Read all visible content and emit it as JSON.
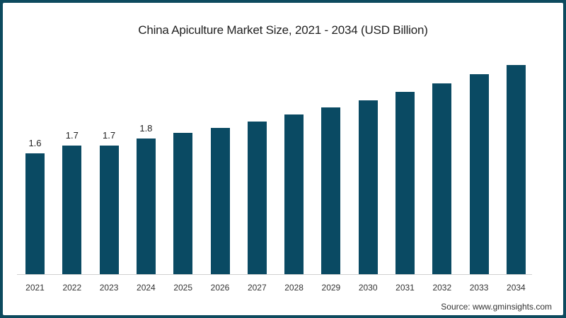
{
  "chart_data": {
    "type": "bar",
    "title": "China Apiculture Market Size, 2021 - 2034 (USD Billion)",
    "xlabel": "",
    "ylabel": "USD Billion",
    "categories": [
      "2021",
      "2022",
      "2023",
      "2024",
      "2025",
      "2026",
      "2027",
      "2028",
      "2029",
      "2030",
      "2031",
      "2032",
      "2033",
      "2034"
    ],
    "values": [
      1.6,
      1.7,
      1.7,
      1.8,
      1.87,
      1.94,
      2.02,
      2.11,
      2.21,
      2.3,
      2.41,
      2.53,
      2.65,
      2.77
    ],
    "data_labels": [
      "1.6",
      "1.7",
      "1.7",
      "1.8",
      "",
      "",
      "",
      "",
      "",
      "",
      "",
      "",
      "",
      ""
    ],
    "ylim": [
      0,
      2.9
    ],
    "grid": false,
    "legend": null,
    "bar_color": "#0a4a63"
  },
  "source": "Source: www.gminsights.com",
  "colors": {
    "border": "#0d4a5e",
    "bar": "#0a4a63",
    "background": "#ffffff"
  }
}
